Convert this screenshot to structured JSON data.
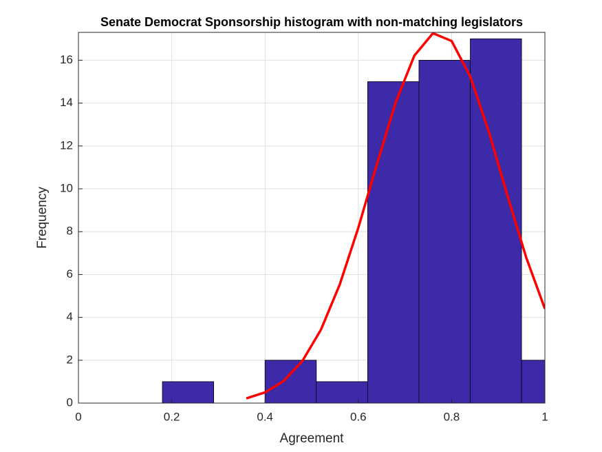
{
  "chart_data": {
    "type": "histogram",
    "title": "Senate Democrat Sponsorship histogram with non-matching legislators",
    "xlabel": "Agreement",
    "ylabel": "Frequency",
    "bins": [
      0.18,
      0.29,
      0.4,
      0.51,
      0.62,
      0.73,
      0.84,
      0.95,
      1.06
    ],
    "counts": [
      1,
      0,
      2,
      1,
      15,
      16,
      17,
      2
    ],
    "color": "#3d2aa8",
    "curve": {
      "color": "#ff0000",
      "x": [
        0.36,
        0.4,
        0.44,
        0.48,
        0.52,
        0.56,
        0.6,
        0.64,
        0.68,
        0.72,
        0.76,
        0.8,
        0.84,
        0.88,
        0.92,
        0.96,
        1.0
      ],
      "values": [
        0.22,
        0.5,
        1.03,
        1.96,
        3.43,
        5.52,
        8.18,
        11.16,
        14.03,
        16.21,
        17.26,
        16.9,
        15.24,
        12.65,
        9.66,
        6.79,
        4.4
      ]
    },
    "xlim": [
      0,
      1
    ],
    "xticks": [
      0,
      0.2,
      0.4,
      0.6,
      0.8,
      1
    ],
    "ylim": [
      0,
      17.3
    ],
    "yticks": [
      0,
      2,
      4,
      6,
      8,
      10,
      12,
      14,
      16
    ],
    "grid": true
  }
}
